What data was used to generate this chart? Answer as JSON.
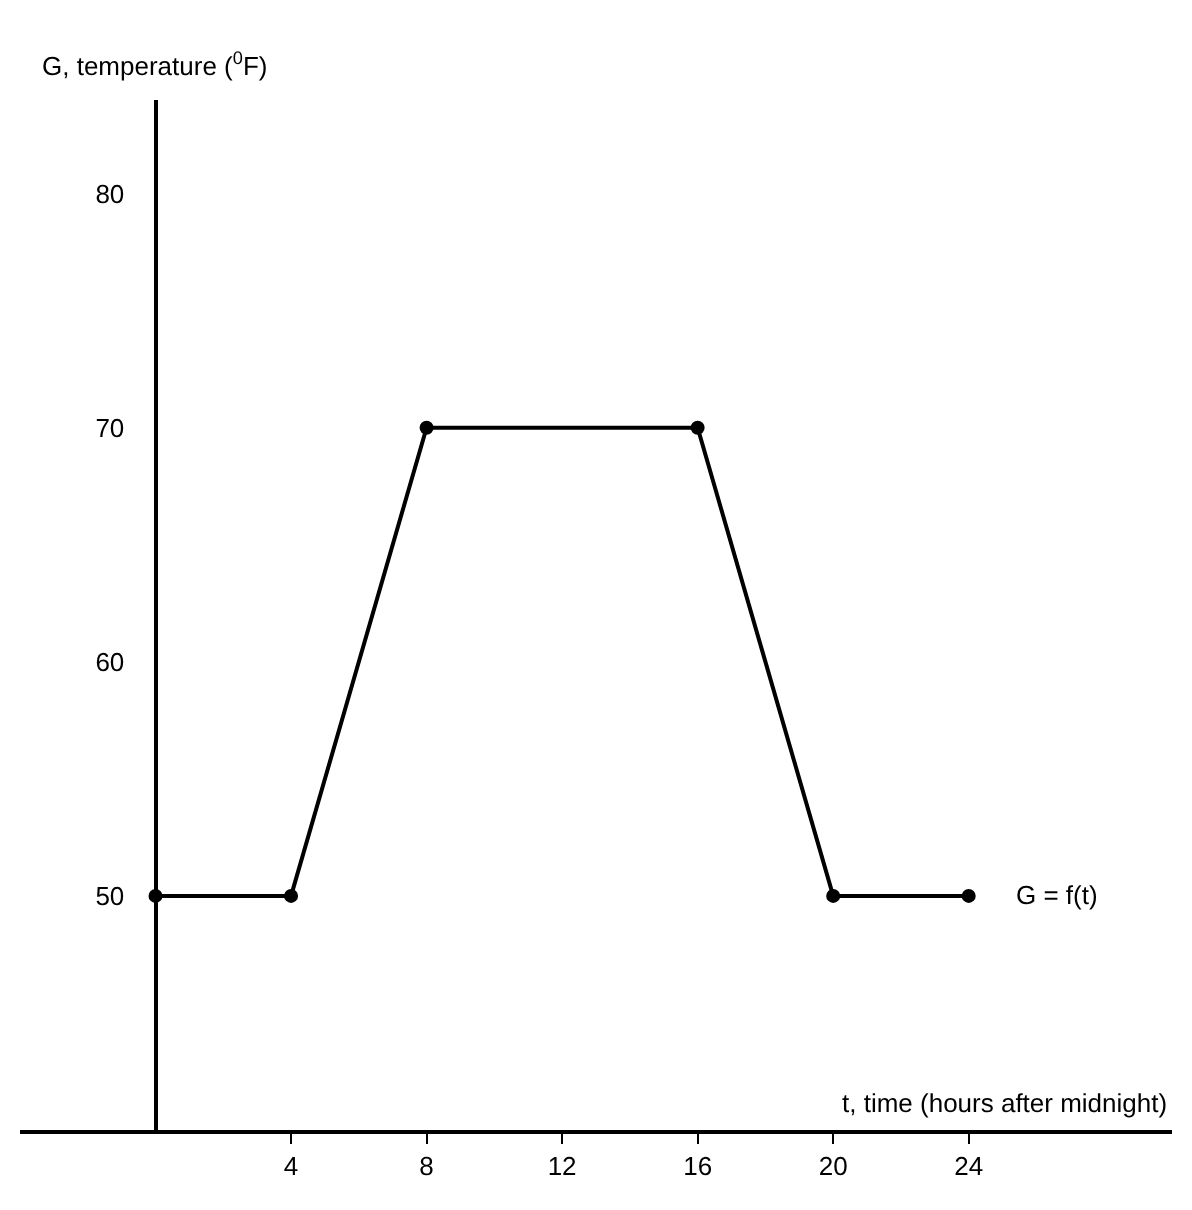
{
  "chart_data": {
    "type": "line",
    "xlabel": "t, time (hours after midnight)",
    "ylabel": "G, temperature ($^{0}$F)",
    "x": [
      0,
      4,
      8,
      16,
      20,
      24
    ],
    "values": [
      50,
      50,
      70,
      70,
      50,
      50
    ],
    "color": "#000000",
    "marker": "circle",
    "line_style": "solid",
    "grid": false,
    "xlim": [
      -4,
      30
    ],
    "xticks": [
      4,
      8,
      12,
      16,
      20,
      24
    ],
    "ylim": [
      40,
      84
    ],
    "yticks": [
      50,
      60,
      70,
      80
    ],
    "annotations": [
      {
        "text": "G = f(t)",
        "x": 24,
        "y": 50
      }
    ]
  }
}
